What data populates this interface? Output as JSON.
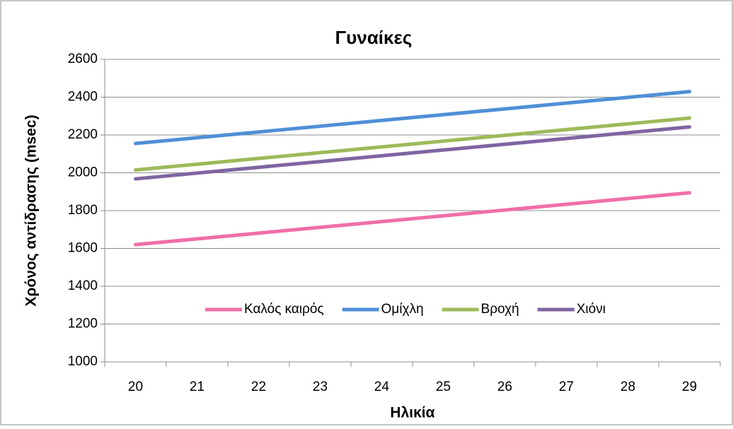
{
  "chart_data": {
    "type": "line",
    "title": "Γυναίκες",
    "x_label": "Ηλικία",
    "y_label": "Χρόνος αντίδρασης (msec)",
    "categories": [
      "20",
      "21",
      "22",
      "23",
      "24",
      "25",
      "26",
      "27",
      "28",
      "29"
    ],
    "series": [
      {
        "name": "Καλός καιρός",
        "color": "#f06ea9",
        "values": [
          1620,
          1650.5,
          1681,
          1711.5,
          1742,
          1772.5,
          1803,
          1833.5,
          1864,
          1894.5
        ]
      },
      {
        "name": "Ομίχλη",
        "color": "#4f8fd6",
        "values": [
          2155,
          2185.5,
          2216,
          2246.5,
          2277,
          2307.5,
          2338,
          2368.5,
          2399,
          2429.5
        ]
      },
      {
        "name": "Βροχή",
        "color": "#9bbb59",
        "values": [
          2015,
          2045.5,
          2076,
          2106.5,
          2137,
          2167.5,
          2198,
          2228.5,
          2259,
          2289.5
        ]
      },
      {
        "name": "Χιόνι",
        "color": "#8064a2",
        "values": [
          1968,
          1998.5,
          2029,
          2059.5,
          2090,
          2120.5,
          2151,
          2181.5,
          2212,
          2242.5
        ]
      }
    ],
    "ylim": [
      1000,
      2600
    ],
    "yticks": [
      1000,
      1200,
      1400,
      1600,
      1800,
      2000,
      2200,
      2400,
      2600
    ],
    "grid": true,
    "legend": "bottom"
  }
}
